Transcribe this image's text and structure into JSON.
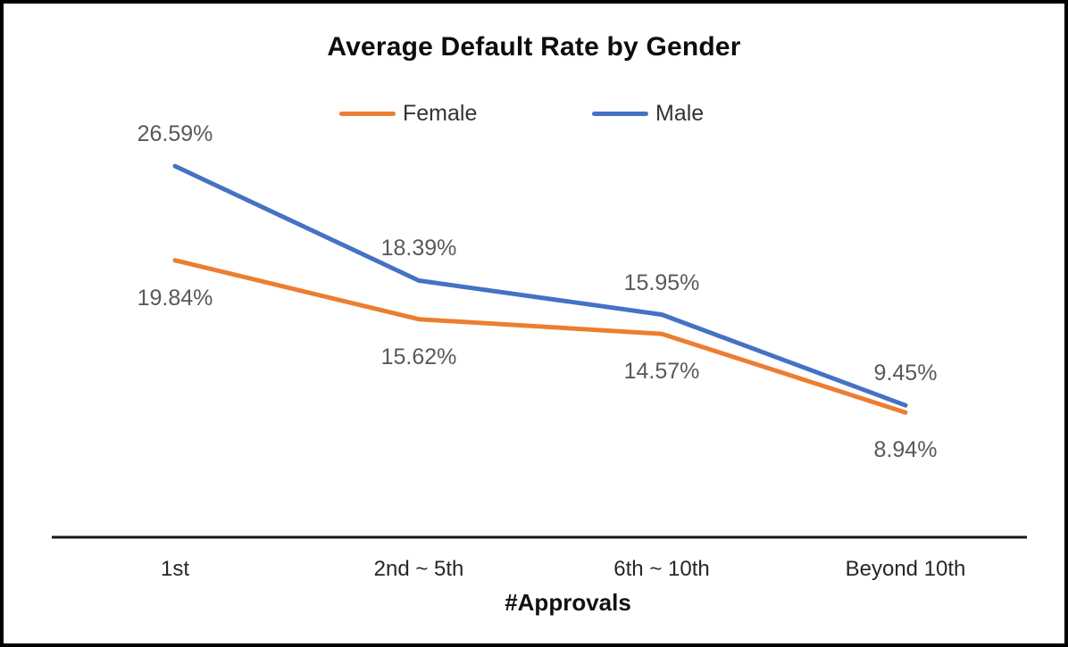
{
  "chart_data": {
    "type": "line",
    "title": "Average Default Rate by Gender",
    "categories": [
      "1st",
      "2nd ~ 5th",
      "6th ~ 10th",
      "Beyond 10th"
    ],
    "xlabel": "#Approvals",
    "ylabel": "",
    "ylim": [
      0,
      30
    ],
    "grid": false,
    "legend_position": "top",
    "series": [
      {
        "name": "Female",
        "color": "#ED7D31",
        "values": [
          19.84,
          15.62,
          14.57,
          8.94
        ],
        "labels": [
          "19.84%",
          "15.62%",
          "14.57%",
          "8.94%"
        ],
        "label_position": "below"
      },
      {
        "name": "Male",
        "color": "#4472C4",
        "values": [
          26.59,
          18.39,
          15.95,
          9.45
        ],
        "labels": [
          "26.59%",
          "18.39%",
          "15.95%",
          "9.45%"
        ],
        "label_position": "above"
      }
    ]
  }
}
